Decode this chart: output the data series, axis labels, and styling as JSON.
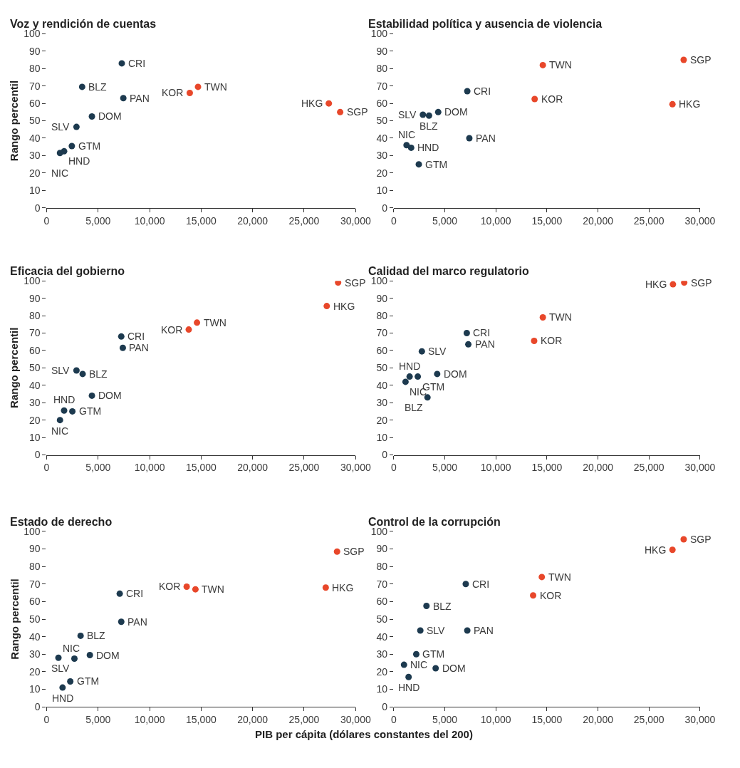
{
  "chart_data": [
    {
      "type": "scatter",
      "title": "Voz y rendición de cuentas",
      "ylabel": "Rango percentil",
      "marker": "circle",
      "grid": false,
      "xlim": [
        0,
        30000
      ],
      "ylim": [
        0,
        100
      ],
      "xticks": [
        0,
        {
          "value": 5000,
          "label": "5,000"
        },
        {
          "value": 10000,
          "label": "10,000"
        },
        {
          "value": 15000,
          "label": "15,000"
        },
        {
          "value": 20000,
          "label": "20,000"
        },
        {
          "value": 25000,
          "label": "25,000"
        },
        {
          "value": 30000,
          "label": "30,000"
        }
      ],
      "yticks": [
        0,
        10,
        20,
        30,
        40,
        50,
        60,
        70,
        80,
        90,
        100
      ],
      "series": [
        {
          "color": "#1d3a4f",
          "x": [
            7300,
            3450,
            7450,
            4400,
            2900,
            2450,
            1700,
            1300
          ],
          "values": [
            83,
            69.5,
            63,
            52.5,
            46.5,
            35.5,
            32.5,
            31.5
          ]
        },
        {
          "color": "#e8472a",
          "x": [
            13900,
            14700,
            27400,
            28500
          ],
          "values": [
            66,
            69.5,
            60,
            55
          ]
        }
      ],
      "annotations": [
        {
          "text": "CRI",
          "x": 7300,
          "y": 83
        },
        {
          "text": "BLZ",
          "x": 3450,
          "y": 69.5
        },
        {
          "text": "PAN",
          "x": 7450,
          "y": 63
        },
        {
          "text": "DOM",
          "x": 4400,
          "y": 52.5
        },
        {
          "text": "SLV",
          "x": 2900,
          "y": 46.5
        },
        {
          "text": "GTM",
          "x": 2450,
          "y": 35.5
        },
        {
          "text": "HND",
          "x": 1700,
          "y": 32.5
        },
        {
          "text": "NIC",
          "x": 1300,
          "y": 31.5
        },
        {
          "text": "KOR",
          "x": 13900,
          "y": 66
        },
        {
          "text": "TWN",
          "x": 14700,
          "y": 69.5
        },
        {
          "text": "HKG",
          "x": 27400,
          "y": 60
        },
        {
          "text": "SGP",
          "x": 28500,
          "y": 55
        }
      ]
    },
    {
      "type": "scatter",
      "title": "Estabilidad política y ausencia de violencia",
      "marker": "circle",
      "grid": false,
      "xlim": [
        0,
        30000
      ],
      "ylim": [
        0,
        100
      ],
      "xticks": [
        0,
        {
          "value": 5000,
          "label": "5,000"
        },
        {
          "value": 10000,
          "label": "10,000"
        },
        {
          "value": 15000,
          "label": "15,000"
        },
        {
          "value": 20000,
          "label": "20,000"
        },
        {
          "value": 25000,
          "label": "25,000"
        },
        {
          "value": 30000,
          "label": "30,000"
        }
      ],
      "yticks": [
        0,
        10,
        20,
        30,
        40,
        50,
        60,
        70,
        80,
        90,
        100
      ],
      "series": [
        {
          "color": "#1d3a4f",
          "x": [
            2850,
            3450,
            4350,
            7200,
            7400,
            1250,
            1700,
            2450
          ],
          "values": [
            53.5,
            53,
            55,
            67,
            40,
            36,
            34.5,
            25
          ]
        },
        {
          "color": "#e8472a",
          "x": [
            14600,
            13800,
            27300,
            28400
          ],
          "values": [
            82,
            62.5,
            59.5,
            85
          ]
        }
      ],
      "annotations": [
        {
          "text": "SLV",
          "x": 2850,
          "y": 53.5
        },
        {
          "text": "BLZ",
          "x": 3450,
          "y": 53
        },
        {
          "text": "DOM",
          "x": 4350,
          "y": 55
        },
        {
          "text": "CRI",
          "x": 7200,
          "y": 67
        },
        {
          "text": "PAN",
          "x": 7400,
          "y": 40
        },
        {
          "text": "NIC",
          "x": 1250,
          "y": 36
        },
        {
          "text": "HND",
          "x": 1700,
          "y": 34.5
        },
        {
          "text": "GTM",
          "x": 2450,
          "y": 25
        },
        {
          "text": "TWN",
          "x": 14600,
          "y": 82
        },
        {
          "text": "KOR",
          "x": 13800,
          "y": 62.5
        },
        {
          "text": "HKG",
          "x": 27300,
          "y": 59.5
        },
        {
          "text": "SGP",
          "x": 28400,
          "y": 85
        }
      ]
    },
    {
      "type": "scatter",
      "title": "Eficacia del gobierno",
      "ylabel": "Rango percentil",
      "marker": "circle",
      "grid": false,
      "xlim": [
        0,
        30000
      ],
      "ylim": [
        0,
        100
      ],
      "xticks": [
        0,
        {
          "value": 5000,
          "label": "5,000"
        },
        {
          "value": 10000,
          "label": "10,000"
        },
        {
          "value": 15000,
          "label": "15,000"
        },
        {
          "value": 20000,
          "label": "20,000"
        },
        {
          "value": 25000,
          "label": "25,000"
        },
        {
          "value": 30000,
          "label": "30,000"
        }
      ],
      "yticks": [
        0,
        10,
        20,
        30,
        40,
        50,
        60,
        70,
        80,
        90,
        100
      ],
      "series": [
        {
          "color": "#1d3a4f",
          "x": [
            7250,
            7400,
            2900,
            3500,
            4400,
            1700,
            2500,
            1300
          ],
          "values": [
            68,
            61.5,
            48.5,
            46.5,
            34,
            25.5,
            25,
            20
          ]
        },
        {
          "color": "#e8472a",
          "x": [
            28300,
            27200,
            14600,
            13800
          ],
          "values": [
            99,
            85.5,
            76,
            72
          ]
        }
      ],
      "annotations": [
        {
          "text": "CRI",
          "x": 7250,
          "y": 68
        },
        {
          "text": "PAN",
          "x": 7400,
          "y": 61.5
        },
        {
          "text": "SLV",
          "x": 2900,
          "y": 48.5
        },
        {
          "text": "BLZ",
          "x": 3500,
          "y": 46.5
        },
        {
          "text": "DOM",
          "x": 4400,
          "y": 34
        },
        {
          "text": "HND",
          "x": 1700,
          "y": 25.5
        },
        {
          "text": "GTM",
          "x": 2500,
          "y": 25
        },
        {
          "text": "NIC",
          "x": 1300,
          "y": 20
        },
        {
          "text": "SGP",
          "x": 28300,
          "y": 99
        },
        {
          "text": "HKG",
          "x": 27200,
          "y": 85.5
        },
        {
          "text": "TWN",
          "x": 14600,
          "y": 76
        },
        {
          "text": "KOR",
          "x": 13800,
          "y": 72
        }
      ]
    },
    {
      "type": "scatter",
      "title": "Calidad del marco regulatorio",
      "marker": "circle",
      "grid": false,
      "xlim": [
        0,
        30000
      ],
      "ylim": [
        0,
        100
      ],
      "xticks": [
        0,
        {
          "value": 5000,
          "label": "5,000"
        },
        {
          "value": 10000,
          "label": "10,000"
        },
        {
          "value": 15000,
          "label": "15,000"
        },
        {
          "value": 20000,
          "label": "20,000"
        },
        {
          "value": 25000,
          "label": "25,000"
        },
        {
          "value": 30000,
          "label": "30,000"
        }
      ],
      "yticks": [
        0,
        10,
        20,
        30,
        40,
        50,
        60,
        70,
        80,
        90,
        100
      ],
      "series": [
        {
          "color": "#1d3a4f",
          "x": [
            7150,
            7300,
            2750,
            4250,
            1550,
            2350,
            1150,
            3300
          ],
          "values": [
            70,
            63.5,
            59.5,
            46.5,
            45,
            45,
            42,
            33
          ]
        },
        {
          "color": "#e8472a",
          "x": [
            28450,
            27350,
            14600,
            13750
          ],
          "values": [
            99,
            98,
            79,
            65.5
          ]
        }
      ],
      "annotations": [
        {
          "text": "CRI",
          "x": 7150,
          "y": 70
        },
        {
          "text": "PAN",
          "x": 7300,
          "y": 63.5
        },
        {
          "text": "SLV",
          "x": 2750,
          "y": 59.5
        },
        {
          "text": "DOM",
          "x": 4250,
          "y": 46.5
        },
        {
          "text": "HND",
          "x": 1550,
          "y": 45
        },
        {
          "text": "GTM",
          "x": 2350,
          "y": 45
        },
        {
          "text": "NIC",
          "x": 1150,
          "y": 42
        },
        {
          "text": "BLZ",
          "x": 3300,
          "y": 33
        },
        {
          "text": "SGP",
          "x": 28450,
          "y": 99
        },
        {
          "text": "HKG",
          "x": 27350,
          "y": 98
        },
        {
          "text": "TWN",
          "x": 14600,
          "y": 79
        },
        {
          "text": "KOR",
          "x": 13750,
          "y": 65.5
        }
      ]
    },
    {
      "type": "scatter",
      "title": "Estado de derecho",
      "ylabel": "Rango percentil",
      "marker": "circle",
      "grid": false,
      "xlim": [
        0,
        30000
      ],
      "ylim": [
        0,
        100
      ],
      "xticks": [
        0,
        {
          "value": 5000,
          "label": "5,000"
        },
        {
          "value": 10000,
          "label": "10,000"
        },
        {
          "value": 15000,
          "label": "15,000"
        },
        {
          "value": 20000,
          "label": "20,000"
        },
        {
          "value": 25000,
          "label": "25,000"
        },
        {
          "value": 30000,
          "label": "30,000"
        }
      ],
      "yticks": [
        0,
        10,
        20,
        30,
        40,
        50,
        60,
        70,
        80,
        90,
        100
      ],
      "series": [
        {
          "color": "#1d3a4f",
          "x": [
            7100,
            7250,
            3300,
            4200,
            1150,
            2700,
            2300,
            1550
          ],
          "values": [
            64.5,
            48.5,
            40.5,
            29.5,
            28,
            27.5,
            14.5,
            11
          ]
        },
        {
          "color": "#e8472a",
          "x": [
            28200,
            27100,
            13600,
            14450
          ],
          "values": [
            88.5,
            68,
            68.5,
            67
          ]
        }
      ],
      "annotations": [
        {
          "text": "CRI",
          "x": 7100,
          "y": 64.5
        },
        {
          "text": "PAN",
          "x": 7250,
          "y": 48.5
        },
        {
          "text": "BLZ",
          "x": 3300,
          "y": 40.5
        },
        {
          "text": "DOM",
          "x": 4200,
          "y": 29.5
        },
        {
          "text": "NIC",
          "x": 1150,
          "y": 28
        },
        {
          "text": "SLV",
          "x": 2700,
          "y": 27.5
        },
        {
          "text": "GTM",
          "x": 2300,
          "y": 14.5
        },
        {
          "text": "HND",
          "x": 1550,
          "y": 11
        },
        {
          "text": "SGP",
          "x": 28200,
          "y": 88.5
        },
        {
          "text": "HKG",
          "x": 27100,
          "y": 68
        },
        {
          "text": "KOR",
          "x": 13600,
          "y": 68.5
        },
        {
          "text": "TWN",
          "x": 14450,
          "y": 67
        }
      ]
    },
    {
      "type": "scatter",
      "title": "Control de la corrupción",
      "xlabel": "PIB per cápita (dólares constantes del 200)",
      "marker": "circle",
      "grid": false,
      "xlim": [
        0,
        30000
      ],
      "ylim": [
        0,
        100
      ],
      "xticks": [
        0,
        {
          "value": 5000,
          "label": "5,000"
        },
        {
          "value": 10000,
          "label": "10,000"
        },
        {
          "value": 15000,
          "label": "15,000"
        },
        {
          "value": 20000,
          "label": "20,000"
        },
        {
          "value": 25000,
          "label": "25,000"
        },
        {
          "value": 30000,
          "label": "30,000"
        }
      ],
      "yticks": [
        0,
        10,
        20,
        30,
        40,
        50,
        60,
        70,
        80,
        90,
        100
      ],
      "series": [
        {
          "color": "#1d3a4f",
          "x": [
            7050,
            3200,
            2600,
            7200,
            2200,
            1000,
            4100,
            1450
          ],
          "values": [
            70,
            57.5,
            43.5,
            43.5,
            30,
            24,
            22,
            17
          ]
        },
        {
          "color": "#e8472a",
          "x": [
            28400,
            27300,
            14500,
            13650
          ],
          "values": [
            95.5,
            89.5,
            74,
            63.5
          ]
        }
      ],
      "annotations": [
        {
          "text": "CRI",
          "x": 7050,
          "y": 70
        },
        {
          "text": "BLZ",
          "x": 3200,
          "y": 57.5
        },
        {
          "text": "SLV",
          "x": 2600,
          "y": 43.5
        },
        {
          "text": "PAN",
          "x": 7200,
          "y": 43.5
        },
        {
          "text": "GTM",
          "x": 2200,
          "y": 30
        },
        {
          "text": "NIC",
          "x": 1000,
          "y": 24
        },
        {
          "text": "DOM",
          "x": 4100,
          "y": 22
        },
        {
          "text": "HND",
          "x": 1450,
          "y": 17
        },
        {
          "text": "SGP",
          "x": 28400,
          "y": 95.5
        },
        {
          "text": "HKG",
          "x": 27300,
          "y": 89.5
        },
        {
          "text": "TWN",
          "x": 14500,
          "y": 74
        },
        {
          "text": "KOR",
          "x": 13650,
          "y": 63.5
        }
      ]
    }
  ]
}
